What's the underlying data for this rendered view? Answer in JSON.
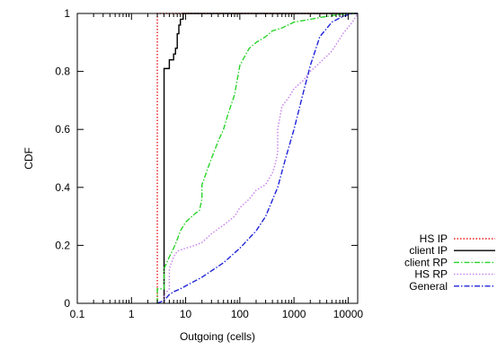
{
  "chart_data": {
    "type": "line",
    "title": "",
    "xlabel": "Outgoing (cells)",
    "ylabel": "CDF",
    "x_scale": "log",
    "xlim": [
      0.1,
      15000
    ],
    "ylim": [
      0,
      1
    ],
    "x_ticks": [
      0.1,
      1,
      10,
      100,
      1000,
      10000
    ],
    "x_tick_labels": [
      "0.1",
      "1",
      "10",
      "100",
      "1000",
      "10000"
    ],
    "y_ticks": [
      0,
      0.2,
      0.4,
      0.6,
      0.8,
      1
    ],
    "y_tick_labels": [
      "0",
      "0.2",
      "0.4",
      "0.6",
      "0.8",
      "1"
    ],
    "grid": false,
    "legend_position": "outside-bottom-right",
    "series": [
      {
        "name": "HS IP",
        "color": "#e41a1c",
        "style": "dotted",
        "points": [
          [
            3,
            0
          ],
          [
            3,
            1
          ],
          [
            15000,
            1
          ]
        ]
      },
      {
        "name": "client IP",
        "color": "#000000",
        "style": "solid",
        "points": [
          [
            4,
            0
          ],
          [
            4,
            0.81
          ],
          [
            5,
            0.81
          ],
          [
            5,
            0.84
          ],
          [
            6,
            0.84
          ],
          [
            6,
            0.86
          ],
          [
            6.5,
            0.86
          ],
          [
            6.5,
            0.88
          ],
          [
            7,
            0.88
          ],
          [
            7,
            0.93
          ],
          [
            7.5,
            0.93
          ],
          [
            7.5,
            0.96
          ],
          [
            8,
            0.96
          ],
          [
            8,
            0.98
          ],
          [
            9,
            0.98
          ],
          [
            9,
            1
          ],
          [
            15000,
            1
          ]
        ]
      },
      {
        "name": "client RP",
        "color": "#2bd42b",
        "style": "dash-dot",
        "points": [
          [
            3,
            0
          ],
          [
            3,
            0.05
          ],
          [
            4,
            0.05
          ],
          [
            4,
            0.12
          ],
          [
            5,
            0.16
          ],
          [
            6,
            0.19
          ],
          [
            7,
            0.22
          ],
          [
            8,
            0.25
          ],
          [
            10,
            0.28
          ],
          [
            15,
            0.31
          ],
          [
            18,
            0.32
          ],
          [
            20,
            0.36
          ],
          [
            20,
            0.41
          ],
          [
            22,
            0.43
          ],
          [
            25,
            0.46
          ],
          [
            30,
            0.5
          ],
          [
            40,
            0.56
          ],
          [
            50,
            0.6
          ],
          [
            60,
            0.65
          ],
          [
            80,
            0.72
          ],
          [
            100,
            0.82
          ],
          [
            130,
            0.86
          ],
          [
            150,
            0.88
          ],
          [
            200,
            0.9
          ],
          [
            300,
            0.92
          ],
          [
            400,
            0.94
          ],
          [
            600,
            0.95
          ],
          [
            1000,
            0.97
          ],
          [
            2000,
            0.98
          ],
          [
            4000,
            0.99
          ],
          [
            10000,
            1
          ],
          [
            15000,
            1
          ]
        ]
      },
      {
        "name": "HS RP",
        "color": "#c57de8",
        "style": "dotted",
        "points": [
          [
            4,
            0
          ],
          [
            4,
            0.03
          ],
          [
            5,
            0.05
          ],
          [
            5,
            0.12
          ],
          [
            6,
            0.16
          ],
          [
            7,
            0.18
          ],
          [
            10,
            0.19
          ],
          [
            15,
            0.2
          ],
          [
            20,
            0.21
          ],
          [
            30,
            0.24
          ],
          [
            50,
            0.27
          ],
          [
            80,
            0.3
          ],
          [
            100,
            0.33
          ],
          [
            150,
            0.36
          ],
          [
            200,
            0.39
          ],
          [
            300,
            0.41
          ],
          [
            400,
            0.45
          ],
          [
            450,
            0.48
          ],
          [
            500,
            0.52
          ],
          [
            500,
            0.6
          ],
          [
            600,
            0.68
          ],
          [
            800,
            0.71
          ],
          [
            1000,
            0.74
          ],
          [
            1500,
            0.77
          ],
          [
            2000,
            0.8
          ],
          [
            3000,
            0.83
          ],
          [
            5000,
            0.87
          ],
          [
            8000,
            0.93
          ],
          [
            12000,
            0.97
          ],
          [
            15000,
            1
          ]
        ]
      },
      {
        "name": "General",
        "color": "#1f24d8",
        "style": "dash-dot",
        "points": [
          [
            3,
            0
          ],
          [
            4,
            0.01
          ],
          [
            5,
            0.03
          ],
          [
            6,
            0.04
          ],
          [
            8,
            0.05
          ],
          [
            10,
            0.06
          ],
          [
            20,
            0.09
          ],
          [
            50,
            0.14
          ],
          [
            100,
            0.19
          ],
          [
            200,
            0.25
          ],
          [
            300,
            0.3
          ],
          [
            500,
            0.4
          ],
          [
            700,
            0.5
          ],
          [
            1000,
            0.6
          ],
          [
            1500,
            0.73
          ],
          [
            2000,
            0.82
          ],
          [
            3000,
            0.92
          ],
          [
            5000,
            0.97
          ],
          [
            8000,
            0.99
          ],
          [
            12000,
            1
          ],
          [
            15000,
            1
          ]
        ]
      }
    ]
  }
}
